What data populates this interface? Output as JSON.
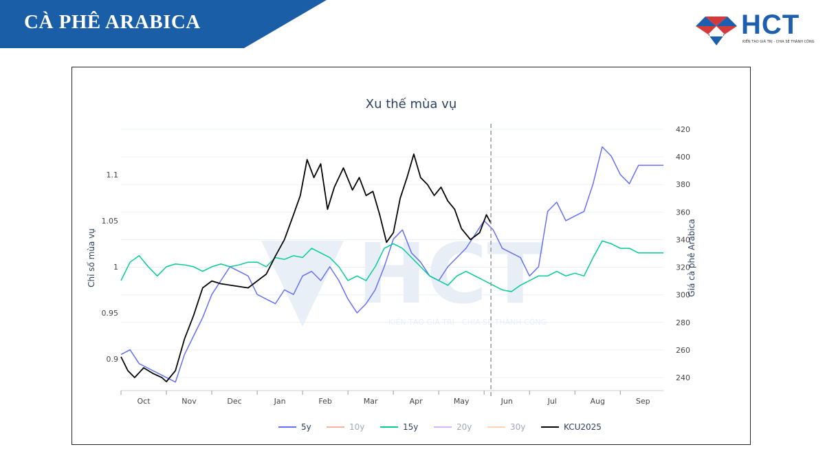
{
  "header": {
    "title": "CÀ PHÊ ARABICA"
  },
  "logo": {
    "text": "HCT",
    "tagline": "KIẾN TẠO GIÁ TRỊ - CHIA SẺ THÀNH CÔNG"
  },
  "watermark": {
    "text": "HCT",
    "tagline": "KIẾN TẠO GIÁ TRỊ - CHIA SẺ THÀNH CÔNG"
  },
  "chart_data": {
    "type": "line",
    "title": "Xu thế mùa vụ",
    "ylabel": "Chỉ số mùa vụ",
    "y2label": "Giá cà phê Arabica",
    "ylim": [
      0.868,
      1.155
    ],
    "y2lim": [
      232,
      424
    ],
    "yticks": [
      0.9,
      0.95,
      1,
      1.05,
      1.1
    ],
    "y2ticks": [
      240,
      260,
      280,
      300,
      320,
      340,
      360,
      380,
      400,
      420
    ],
    "xticks": [
      "Oct",
      "Nov",
      "Dec",
      "Jan",
      "Feb",
      "Mar",
      "Apr",
      "May",
      "Jun",
      "Jul",
      "Aug",
      "Sep"
    ],
    "x_unit": "months since Oct 1",
    "xlim": [
      0,
      11.95
    ],
    "vline_x": 8.15,
    "grid": true,
    "legend_position": "bottom",
    "series": [
      {
        "name": "5y",
        "color": "#636efa",
        "axis": "left",
        "visible": true,
        "x": [
          0,
          0.2,
          0.4,
          0.6,
          0.8,
          1.0,
          1.2,
          1.4,
          1.6,
          1.8,
          2.0,
          2.2,
          2.4,
          2.6,
          2.8,
          3.0,
          3.2,
          3.4,
          3.6,
          3.8,
          4.0,
          4.2,
          4.4,
          4.6,
          4.8,
          5.0,
          5.2,
          5.4,
          5.6,
          5.8,
          6.0,
          6.2,
          6.4,
          6.6,
          6.8,
          7.0,
          7.2,
          7.4,
          7.6,
          7.8,
          8.0,
          8.2,
          8.4,
          8.6,
          8.8,
          9.0,
          9.2,
          9.4,
          9.6,
          9.8,
          10.0,
          10.2,
          10.4,
          10.6,
          10.8,
          11.0,
          11.2,
          11.4,
          11.6,
          11.95
        ],
        "y": [
          0.905,
          0.91,
          0.895,
          0.89,
          0.885,
          0.88,
          0.875,
          0.905,
          0.925,
          0.945,
          0.97,
          0.985,
          1.0,
          0.995,
          0.99,
          0.97,
          0.965,
          0.96,
          0.975,
          0.97,
          0.99,
          0.995,
          0.985,
          1.0,
          0.985,
          0.965,
          0.95,
          0.96,
          0.975,
          1.0,
          1.03,
          1.04,
          1.015,
          1.005,
          0.99,
          0.985,
          1.0,
          1.01,
          1.02,
          1.035,
          1.05,
          1.04,
          1.02,
          1.015,
          1.01,
          0.99,
          1.0,
          1.06,
          1.07,
          1.05,
          1.055,
          1.06,
          1.09,
          1.13,
          1.12,
          1.1,
          1.09,
          1.11,
          1.11,
          1.11
        ]
      },
      {
        "name": "10y",
        "color": "#ef553b",
        "axis": "left",
        "visible": false,
        "x": [],
        "y": []
      },
      {
        "name": "15y",
        "color": "#00cc96",
        "axis": "left",
        "visible": true,
        "x": [
          0,
          0.2,
          0.4,
          0.6,
          0.8,
          1.0,
          1.2,
          1.4,
          1.6,
          1.8,
          2.0,
          2.2,
          2.4,
          2.6,
          2.8,
          3.0,
          3.2,
          3.4,
          3.6,
          3.8,
          4.0,
          4.2,
          4.4,
          4.6,
          4.8,
          5.0,
          5.2,
          5.4,
          5.6,
          5.8,
          6.0,
          6.2,
          6.4,
          6.6,
          6.8,
          7.0,
          7.2,
          7.4,
          7.6,
          7.8,
          8.0,
          8.2,
          8.4,
          8.6,
          8.8,
          9.0,
          9.2,
          9.4,
          9.6,
          9.8,
          10.0,
          10.2,
          10.4,
          10.6,
          10.8,
          11.0,
          11.2,
          11.4,
          11.6,
          11.95
        ],
        "y": [
          0.985,
          1.005,
          1.012,
          1.0,
          0.99,
          1.0,
          1.003,
          1.002,
          1.0,
          0.995,
          1.0,
          1.003,
          1.0,
          1.002,
          1.005,
          1.005,
          1.0,
          1.01,
          1.008,
          1.012,
          1.01,
          1.02,
          1.015,
          1.01,
          1.0,
          0.985,
          0.99,
          0.985,
          1.0,
          1.02,
          1.025,
          1.02,
          1.01,
          1.0,
          0.99,
          0.985,
          0.98,
          0.99,
          0.995,
          0.99,
          0.985,
          0.98,
          0.975,
          0.973,
          0.98,
          0.985,
          0.99,
          0.99,
          0.995,
          0.99,
          0.993,
          0.99,
          1.01,
          1.028,
          1.025,
          1.02,
          1.02,
          1.015,
          1.015,
          1.015
        ]
      },
      {
        "name": "20y",
        "color": "#ab63fa",
        "axis": "left",
        "visible": false,
        "x": [],
        "y": []
      },
      {
        "name": "30y",
        "color": "#ffa15a",
        "axis": "left",
        "visible": false,
        "x": [],
        "y": []
      },
      {
        "name": "KCU2025",
        "color": "#000000",
        "axis": "right",
        "visible": true,
        "x": [
          0,
          0.15,
          0.3,
          0.5,
          0.7,
          0.9,
          1.0,
          1.2,
          1.4,
          1.6,
          1.8,
          2.0,
          2.2,
          2.4,
          2.6,
          2.8,
          3.0,
          3.2,
          3.4,
          3.6,
          3.8,
          3.95,
          4.1,
          4.25,
          4.4,
          4.55,
          4.7,
          4.9,
          5.1,
          5.25,
          5.4,
          5.55,
          5.7,
          5.85,
          6.0,
          6.15,
          6.3,
          6.45,
          6.6,
          6.75,
          6.9,
          7.05,
          7.2,
          7.35,
          7.5,
          7.7,
          7.9,
          8.05,
          8.15
        ],
        "y": [
          255,
          245,
          240,
          247,
          243,
          240,
          237,
          245,
          268,
          285,
          305,
          310,
          308,
          307,
          306,
          305,
          310,
          315,
          328,
          340,
          358,
          372,
          398,
          385,
          395,
          362,
          378,
          392,
          376,
          385,
          372,
          375,
          358,
          338,
          345,
          370,
          385,
          402,
          385,
          380,
          372,
          378,
          368,
          362,
          348,
          340,
          345,
          358,
          352
        ]
      }
    ]
  }
}
